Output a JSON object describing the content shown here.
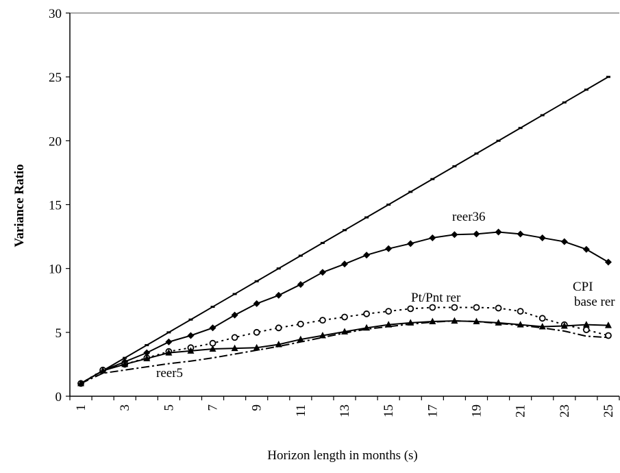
{
  "chart_data": {
    "type": "line",
    "xlabel": "Horizon length in months (s)",
    "ylabel": "Variance Ratio",
    "categories": [
      "1",
      null,
      "3",
      null,
      "5",
      null,
      "7",
      null,
      "9",
      null,
      "11",
      null,
      "13",
      null,
      "15",
      null,
      "17",
      null,
      "19",
      null,
      "21",
      null,
      "23",
      null,
      "25"
    ],
    "ylim": [
      0,
      30
    ],
    "yticks": [
      0,
      5,
      10,
      15,
      20,
      25,
      30
    ],
    "grid": false,
    "series": [
      {
        "color": "#000000",
        "marker": "dash",
        "line_style": "solid",
        "values": [
          1,
          2,
          3,
          4,
          5,
          6,
          7,
          8,
          9,
          10,
          11,
          12,
          13,
          14,
          15,
          16,
          17,
          18,
          19,
          20,
          21,
          22,
          23,
          24,
          25
        ]
      },
      {
        "color": "#000000",
        "marker": "diamond",
        "line_style": "solid",
        "values": [
          1,
          2.0,
          2.7,
          3.4,
          4.25,
          4.75,
          5.35,
          6.35,
          7.25,
          7.9,
          8.75,
          9.7,
          10.35,
          11.05,
          11.55,
          11.95,
          12.4,
          12.65,
          12.7,
          12.85,
          12.7,
          12.4,
          12.1,
          11.5,
          10.5
        ]
      },
      {
        "color": "#000000",
        "marker": "circle",
        "line_style": "dotted",
        "values": [
          1,
          2.05,
          2.5,
          3.0,
          3.5,
          3.8,
          4.15,
          4.6,
          5.0,
          5.35,
          5.65,
          5.95,
          6.2,
          6.45,
          6.65,
          6.85,
          6.95,
          6.95,
          6.95,
          6.9,
          6.65,
          6.1,
          5.6,
          5.2,
          4.75
        ]
      },
      {
        "color": "#000000",
        "marker": "triangle",
        "line_style": "solid",
        "values": [
          1,
          2.0,
          2.5,
          2.95,
          3.4,
          3.55,
          3.7,
          3.75,
          3.8,
          4.05,
          4.45,
          4.75,
          5.05,
          5.35,
          5.6,
          5.75,
          5.85,
          5.9,
          5.85,
          5.75,
          5.6,
          5.45,
          5.5,
          5.6,
          5.55
        ]
      },
      {
        "color": "#000000",
        "marker": "none",
        "line_style": "dashdot",
        "values": [
          1,
          1.8,
          2.05,
          2.3,
          2.55,
          2.75,
          3.0,
          3.3,
          3.6,
          3.9,
          4.25,
          4.6,
          4.95,
          5.25,
          5.45,
          5.65,
          5.8,
          5.9,
          5.85,
          5.7,
          5.55,
          5.35,
          5.1,
          4.7,
          4.6
        ]
      }
    ],
    "annotations": [
      "reer36",
      "Pt/Pnt rer",
      "CPI",
      "base rer",
      "reer5"
    ]
  }
}
